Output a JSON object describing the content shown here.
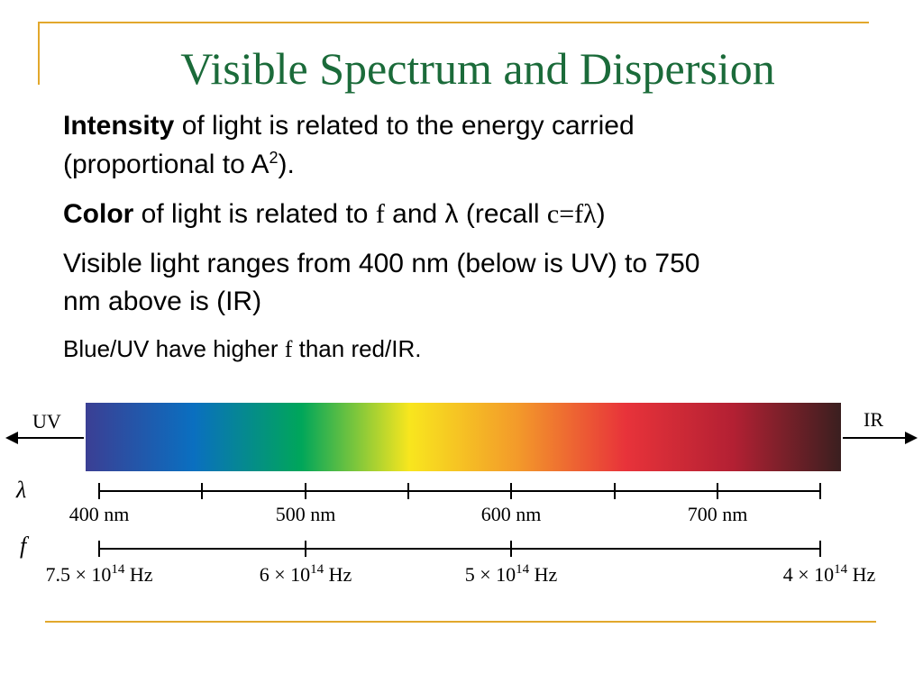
{
  "slide": {
    "title": "Visible Spectrum and Dispersion",
    "line1": {
      "bold": "Intensity",
      "rest": " of light is related to the energy carried"
    },
    "line2": {
      "pre": "(proportional to A",
      "sup": "2",
      "post": ")."
    },
    "line3": {
      "bold": "Color",
      "pre": " of light is related to ",
      "f": "f",
      "mid": " and λ (recall ",
      "formula": "c=fλ",
      "post": ")"
    },
    "line4": "Visible light ranges from 400 nm (below is UV) to 750",
    "line5": "nm above is (IR)",
    "line6": {
      "pre": "Blue/UV have higher ",
      "f": "f",
      "post": " than red/IR."
    }
  },
  "diagram": {
    "uv_label": "UV",
    "ir_label": "IR",
    "lambda_symbol": "λ",
    "f_symbol": "f",
    "wavelength_labels": [
      "400 nm",
      "500 nm",
      "600 nm",
      "700 nm"
    ],
    "frequency_labels": [
      {
        "pre": "7.5 × 10",
        "exp": "14",
        "post": " Hz"
      },
      {
        "pre": "6 × 10",
        "exp": "14",
        "post": " Hz"
      },
      {
        "pre": "5 × 10",
        "exp": "14",
        "post": " Hz"
      },
      {
        "pre": "4 × 10",
        "exp": "14",
        "post": " Hz"
      }
    ],
    "colors": {
      "title": "#1B6B3A",
      "frame": "#E2A82C",
      "spectrum_stops": [
        "#3b3f94",
        "#0a6fc0",
        "#00a65a",
        "#f8e61e",
        "#f39a2a",
        "#e8333a",
        "#b32033",
        "#3a1f1f"
      ]
    }
  }
}
